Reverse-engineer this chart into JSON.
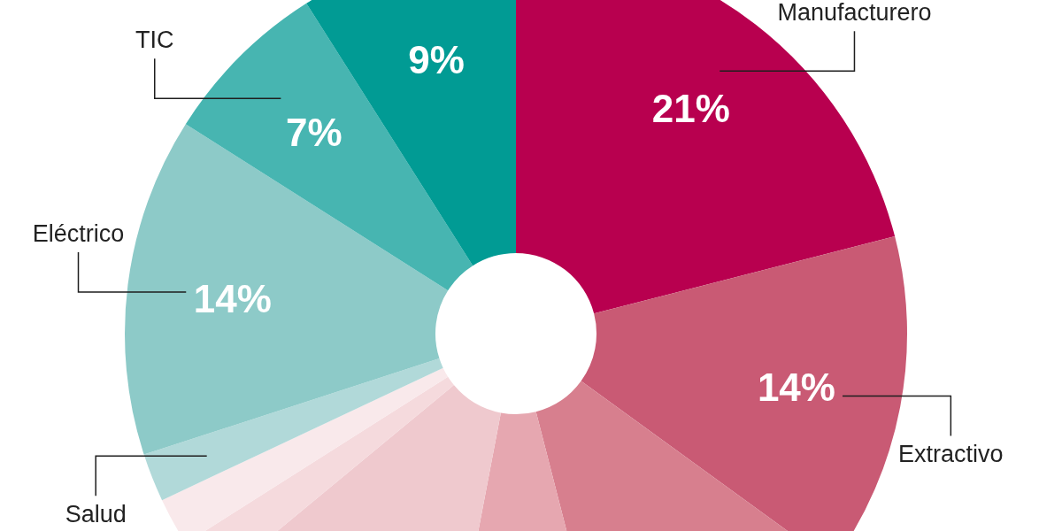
{
  "chart_data": {
    "type": "donut",
    "categories": [
      "Manufacturero",
      "Extractivo",
      null,
      null,
      null,
      null,
      null,
      "Salud",
      "Eléctrico",
      "TIC",
      null
    ],
    "values": [
      21,
      14,
      11,
      7,
      11,
      2,
      2,
      2,
      14,
      7,
      9
    ],
    "colors": [
      "#b8004f",
      "#c95a74",
      "#d77f8e",
      "#e6a7b0",
      "#efc9ce",
      "#f5dadd",
      "#f9e9eb",
      "#b1d9d9",
      "#8dcac8",
      "#47b5b1",
      "#019b94"
    ],
    "value_labels": [
      "21%",
      "14%",
      null,
      null,
      null,
      null,
      null,
      null,
      "14%",
      "7%",
      "9%"
    ]
  }
}
